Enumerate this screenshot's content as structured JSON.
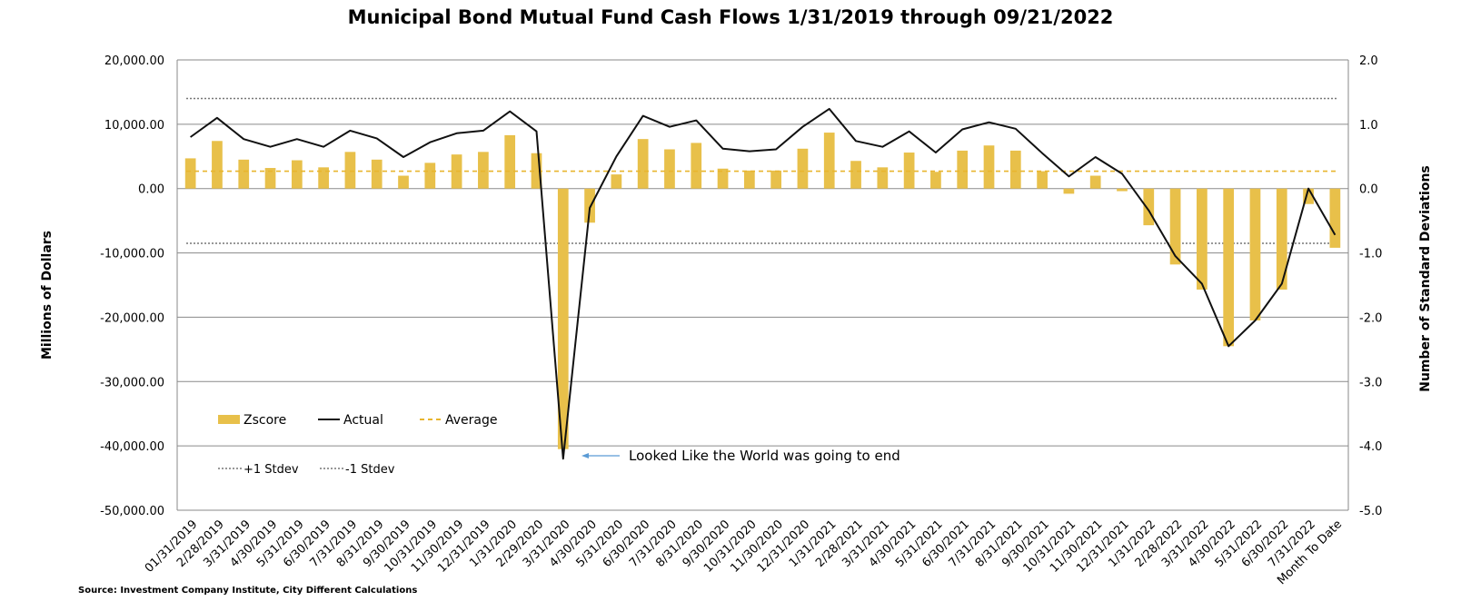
{
  "chart_data": {
    "type": "bar",
    "title": "Municipal Bond Mutual Fund Cash Flows 1/31/2019 through 09/21/2022",
    "ylabel": "Millions of Dollars",
    "y2label": "Number of Standard Deviations",
    "ylim": [
      -50000,
      20000
    ],
    "y2lim": [
      -5.0,
      2.0
    ],
    "y_ticks": [
      "20,000.00",
      "10,000.00",
      "0.00",
      "-10,000.00",
      "-20,000.00",
      "-30,000.00",
      "-40,000.00",
      "-50,000.00"
    ],
    "y2_ticks": [
      "2.0",
      "1.0",
      "0.0",
      "-1.0",
      "-2.0",
      "-3.0",
      "-4.0",
      "-5.0"
    ],
    "categories": [
      "01/31/2019",
      "2/28/2019",
      "3/31/2019",
      "4/30/2019",
      "5/31/2019",
      "6/30/2019",
      "7/31/2019",
      "8/31/2019",
      "9/30/2019",
      "10/31/2019",
      "11/30/2019",
      "12/31/2019",
      "1/31/2020",
      "2/29/2020",
      "3/31/2020",
      "4/30/2020",
      "5/31/2020",
      "6/30/2020",
      "7/31/2020",
      "8/31/2020",
      "9/30/2020",
      "10/31/2020",
      "11/30/2020",
      "12/31/2020",
      "1/31/2021",
      "2/28/2021",
      "3/31/2021",
      "4/30/2021",
      "5/31/2021",
      "6/30/2021",
      "7/31/2021",
      "8/31/2021",
      "9/30/2021",
      "10/31/2021",
      "11/30/2021",
      "12/31/2021",
      "1/31/2022",
      "2/28/2022",
      "3/31/2022",
      "4/30/2022",
      "5/31/2022",
      "6/30/2022",
      "7/31/2022",
      "Month To Date"
    ],
    "series": [
      {
        "name": "Zscore",
        "type": "bar",
        "axis": "right",
        "values": [
          0.47,
          0.74,
          0.45,
          0.32,
          0.44,
          0.33,
          0.57,
          0.45,
          0.2,
          0.4,
          0.53,
          0.57,
          0.83,
          0.55,
          -4.05,
          -0.53,
          0.22,
          0.77,
          0.61,
          0.71,
          0.31,
          0.28,
          0.28,
          0.62,
          0.87,
          0.43,
          0.33,
          0.56,
          0.26,
          0.59,
          0.67,
          0.59,
          0.27,
          -0.08,
          0.2,
          -0.04,
          -0.57,
          -1.18,
          -1.57,
          -2.45,
          -2.05,
          -1.57,
          -0.24,
          -0.92
        ]
      },
      {
        "name": "Actual",
        "type": "line",
        "axis": "left",
        "values": [
          8000,
          11000,
          7700,
          6500,
          7700,
          6500,
          9000,
          7800,
          4900,
          7200,
          8600,
          9000,
          12000,
          8900,
          -42000,
          -3000,
          5000,
          11300,
          9600,
          10600,
          6200,
          5800,
          6100,
          9600,
          12400,
          7400,
          6500,
          8900,
          5600,
          9200,
          10300,
          9300,
          5500,
          1900,
          4900,
          2300,
          -3400,
          -10500,
          -14800,
          -24500,
          -20500,
          -14800,
          0,
          -7200
        ]
      },
      {
        "name": "Average",
        "type": "line",
        "axis": "left",
        "style": "dashed",
        "value": 2700
      },
      {
        "name": "+1 Stdev",
        "type": "line",
        "axis": "left",
        "style": "dotted",
        "value": 14000
      },
      {
        "name": "-1 Stdev",
        "type": "line",
        "axis": "left",
        "style": "dotted",
        "value": -8500
      }
    ],
    "grid": true,
    "legend_placement": "bottom-left",
    "annotation": "Looked Like the World was going to end",
    "source": "Source: Investment Company Institute, City Different Calculations",
    "colors": {
      "bar": "#E8C04A",
      "actual": "#111111",
      "average": "#E8B52E",
      "stdev": "#777777",
      "grid": "#8a8a8a",
      "arrow": "#5B9BD5"
    }
  }
}
